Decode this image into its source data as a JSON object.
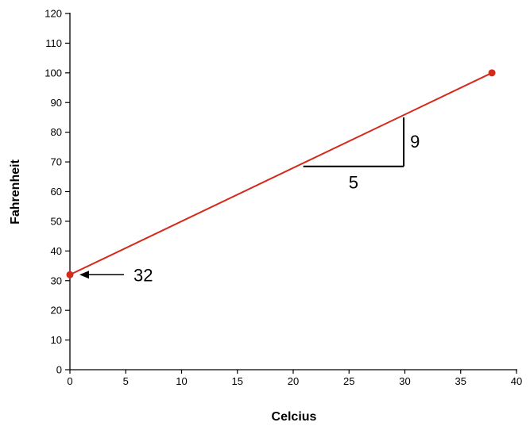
{
  "chart_data": {
    "type": "line",
    "xlabel": "Celcius",
    "ylabel": "Fahrenheit",
    "xlim": [
      0,
      40
    ],
    "ylim": [
      0,
      120
    ],
    "x_ticks": [
      0,
      5,
      10,
      15,
      20,
      25,
      30,
      35,
      40
    ],
    "y_ticks": [
      0,
      10,
      20,
      30,
      40,
      50,
      60,
      70,
      80,
      90,
      100,
      110,
      120
    ],
    "grid": false,
    "series": [
      {
        "x": [
          0,
          37.8
        ],
        "y": [
          32,
          100
        ],
        "color": "#d42a1c"
      }
    ],
    "points": [
      {
        "x": 0,
        "y": 32
      },
      {
        "x": 37.8,
        "y": 100
      }
    ],
    "annotations": {
      "intercept_label": "32",
      "run_label": "5",
      "rise_label": "9",
      "slope_triangle": {
        "x_start": 20.9,
        "x_end": 29.9,
        "y_base": 68.5,
        "y_top": 85
      }
    }
  }
}
